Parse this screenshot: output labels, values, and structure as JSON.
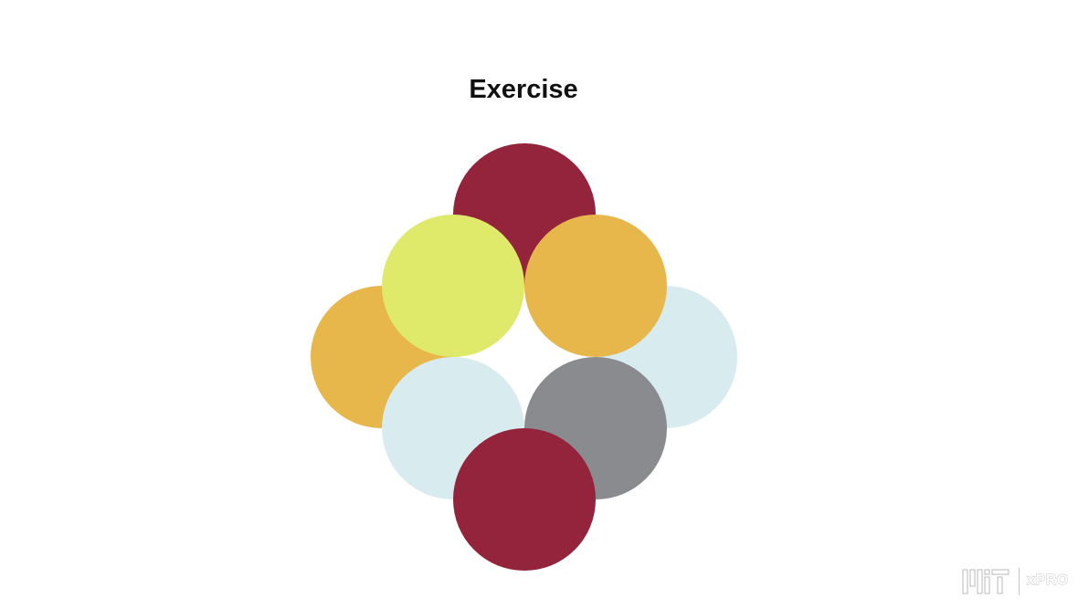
{
  "slide": {
    "title": "Exercise"
  },
  "diagram": {
    "circles": [
      {
        "name": "top-crimson-circle",
        "color": "#93243b"
      },
      {
        "name": "left-orange-circle",
        "color": "#e8b74b"
      },
      {
        "name": "right-lightblue-circle",
        "color": "#d8ecf0"
      },
      {
        "name": "upper-left-yellow-circle",
        "color": "#dfe96a"
      },
      {
        "name": "upper-right-orange-circle",
        "color": "#e8b74b"
      },
      {
        "name": "lower-right-gray-circle",
        "color": "#8a8b8e"
      },
      {
        "name": "lower-left-lightblue-circle",
        "color": "#d8ecf0"
      },
      {
        "name": "bottom-crimson-circle",
        "color": "#93243b"
      }
    ]
  },
  "branding": {
    "logo_text": "MIT",
    "product_text": "xPRO"
  }
}
